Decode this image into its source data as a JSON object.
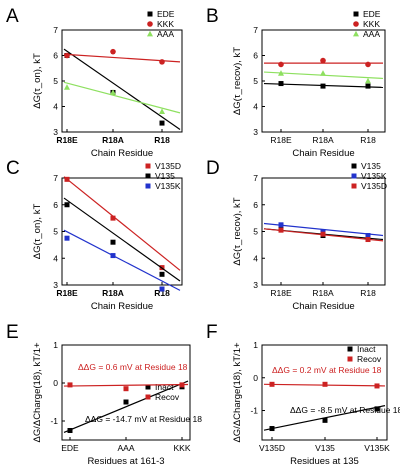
{
  "chart_data": [
    {
      "panel": "A",
      "type": "scatter",
      "categories": [
        "R18E",
        "R18A",
        "R18"
      ],
      "categories_bold": true,
      "xlabel": "Chain Residue",
      "ylabel": "ΔG(τ_on), kT",
      "ylim": [
        3,
        7
      ],
      "yticks": [
        "3",
        "4",
        "5",
        "6",
        "7"
      ],
      "legend": "top-right",
      "series": [
        {
          "name": "EDE",
          "color": "#000000",
          "marker": "square",
          "values": [
            6.0,
            4.55,
            3.35
          ],
          "fit": [
            6.25,
            3.1
          ]
        },
        {
          "name": "KKK",
          "color": "#cc2222",
          "marker": "circle",
          "values": [
            6.0,
            6.15,
            5.75
          ],
          "fit": [
            6.05,
            5.75
          ]
        },
        {
          "name": "AAA",
          "color": "#8ee060",
          "marker": "triangle",
          "values": [
            4.75,
            4.55,
            3.8
          ],
          "fit": [
            4.95,
            3.75
          ]
        }
      ]
    },
    {
      "panel": "B",
      "type": "scatter",
      "categories": [
        "R18E",
        "R18A",
        "R18"
      ],
      "xlabel": "Chain Residue",
      "ylabel": "ΔG(τ_recov), kT",
      "ylim": [
        3,
        7
      ],
      "yticks": [
        "3",
        "4",
        "5",
        "6",
        "7"
      ],
      "legend": "top-right",
      "series": [
        {
          "name": "EDE",
          "color": "#000000",
          "marker": "square",
          "values": [
            4.9,
            4.8,
            4.8
          ],
          "fit": [
            4.9,
            4.75
          ]
        },
        {
          "name": "KKK",
          "color": "#cc2222",
          "marker": "circle",
          "values": [
            5.65,
            5.8,
            5.65
          ],
          "fit": [
            5.7,
            5.7
          ]
        },
        {
          "name": "AAA",
          "color": "#8ee060",
          "marker": "triangle",
          "values": [
            5.3,
            5.3,
            5.0
          ],
          "fit": [
            5.35,
            5.1
          ]
        }
      ]
    },
    {
      "panel": "C",
      "type": "scatter",
      "categories": [
        "R18E",
        "R18A",
        "R18"
      ],
      "categories_bold": true,
      "xlabel": "Chain Residue",
      "ylabel": "ΔG(τ_on), kT",
      "ylim": [
        3,
        7
      ],
      "yticks": [
        "3",
        "4",
        "5",
        "6",
        "7"
      ],
      "legend": "top-right",
      "series": [
        {
          "name": "V135D",
          "color": "#cc2222",
          "marker": "square",
          "values": [
            6.95,
            5.5,
            3.65
          ],
          "fit": [
            7.05,
            3.55
          ]
        },
        {
          "name": "V135",
          "color": "#000000",
          "marker": "square",
          "values": [
            6.0,
            4.6,
            3.4
          ],
          "fit": [
            6.25,
            3.15
          ]
        },
        {
          "name": "V135K",
          "color": "#2233cc",
          "marker": "square",
          "values": [
            4.75,
            4.1,
            2.85
          ],
          "fit": [
            5.05,
            2.8
          ]
        }
      ]
    },
    {
      "panel": "D",
      "type": "scatter",
      "categories": [
        "R18E",
        "R18A",
        "R18"
      ],
      "xlabel": "Chain Residue",
      "ylabel": "ΔG(τ_recov), kT",
      "ylim": [
        3,
        7
      ],
      "yticks": [
        "3",
        "4",
        "5",
        "6",
        "7"
      ],
      "legend": "top-right",
      "series": [
        {
          "name": "V135",
          "color": "#000000",
          "marker": "square",
          "values": [
            5.1,
            4.85,
            4.75
          ],
          "fit": [
            5.1,
            4.7
          ]
        },
        {
          "name": "V135K",
          "color": "#2233cc",
          "marker": "square",
          "values": [
            5.25,
            5.0,
            4.85
          ],
          "fit": [
            5.3,
            4.85
          ]
        },
        {
          "name": "V135D",
          "color": "#cc2222",
          "marker": "square",
          "values": [
            5.05,
            4.9,
            4.7
          ],
          "fit": [
            5.1,
            4.65
          ]
        }
      ]
    },
    {
      "panel": "E",
      "type": "scatter",
      "categories": [
        "EDE",
        "AAA",
        "KKK"
      ],
      "xlabel": "Residues at 161-3",
      "ylabel": "ΔG/ΔCharge(18), kT/1+",
      "ylim": [
        -1.5,
        1
      ],
      "yticks": [
        "-1",
        "0",
        "1"
      ],
      "yticks_values": [
        -1,
        0,
        1
      ],
      "legend": "middle-right",
      "series": [
        {
          "name": "Inact",
          "color": "#000000",
          "marker": "square",
          "values": [
            -1.25,
            -0.5,
            -0.1
          ],
          "fit": [
            -1.3,
            0.05
          ]
        },
        {
          "name": "Recov",
          "color": "#cc2222",
          "marker": "square",
          "values": [
            -0.05,
            -0.15,
            -0.05
          ],
          "fit": [
            -0.08,
            -0.04
          ]
        }
      ],
      "annotations": [
        {
          "text": "ΔΔG = 0.6 mV at Residue 18",
          "color": "#cc2222"
        },
        {
          "text": "ΔΔG = -14.7 mV at Residue 18",
          "color": "#000000"
        }
      ]
    },
    {
      "panel": "F",
      "type": "scatter",
      "categories": [
        "V135D",
        "V135",
        "V135K"
      ],
      "xlabel": "Residues at 135",
      "ylabel": "ΔG/ΔCharge(18), kT/1+",
      "ylim": [
        -1.9,
        1
      ],
      "yticks": [
        "-1",
        "0",
        "1"
      ],
      "yticks_values": [
        -1,
        0,
        1
      ],
      "legend": "top-right",
      "series": [
        {
          "name": "Inact",
          "color": "#000000",
          "marker": "square",
          "values": [
            -1.55,
            -1.3,
            -0.95
          ],
          "fit": [
            -1.6,
            -0.85
          ]
        },
        {
          "name": "Recov",
          "color": "#cc2222",
          "marker": "square",
          "values": [
            -0.2,
            -0.2,
            -0.25
          ],
          "fit": [
            -0.2,
            -0.25
          ]
        }
      ],
      "annotations": [
        {
          "text": "ΔΔG = 0.2 mV at Residue 18",
          "color": "#cc2222"
        },
        {
          "text": "ΔΔG = -8.5 mV at Residue 18",
          "color": "#000000"
        }
      ]
    }
  ]
}
